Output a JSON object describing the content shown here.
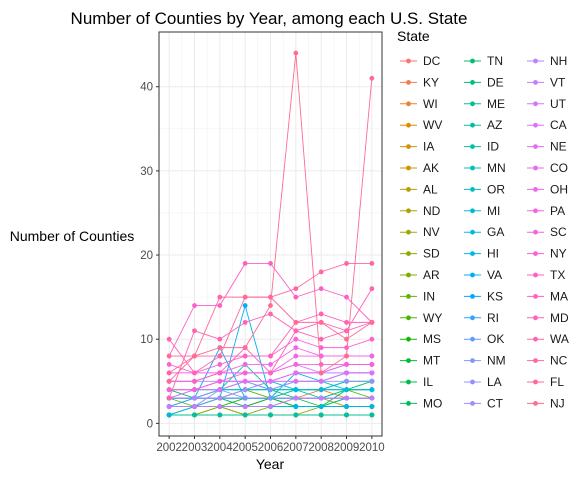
{
  "chart_data": {
    "type": "line",
    "title": "Number of Counties by Year, among each U.S. State",
    "xlabel": "Year",
    "ylabel": "Number of Counties",
    "x": [
      2002,
      2003,
      2004,
      2005,
      2006,
      2007,
      2008,
      2009,
      2010
    ],
    "x_tick_labels": [
      "2002",
      "2003",
      "2004",
      "2005",
      "2006",
      "2007",
      "2008",
      "2009",
      "2010"
    ],
    "xlim": [
      2001.6,
      2010.4
    ],
    "ylim": [
      -1.5,
      46.5
    ],
    "y_ticks": [
      0,
      10,
      20,
      30,
      40
    ],
    "y_tick_labels": [
      "0",
      "10",
      "20",
      "30",
      "40"
    ],
    "grid": true,
    "theme": "light",
    "legend": {
      "title": "State",
      "position": "right",
      "columns": 3,
      "entries": [
        "DC",
        "KY",
        "WI",
        "WV",
        "IA",
        "AK",
        "AL",
        "ND",
        "NV",
        "SD",
        "AR",
        "IN",
        "WY",
        "MS",
        "MT",
        "IL",
        "MO",
        "TN",
        "DE",
        "ME",
        "AZ",
        "ID",
        "MN",
        "OR",
        "MI",
        "GA",
        "HI",
        "VA",
        "KS",
        "RI",
        "OK",
        "NM",
        "LA",
        "CT",
        "NH",
        "VT",
        "UT",
        "CA",
        "NE",
        "CO",
        "OH",
        "PA",
        "SC",
        "NY",
        "TX",
        "MA",
        "MD",
        "WA",
        "NC",
        "FL",
        "NJ"
      ]
    },
    "colors": [
      "#F8766D",
      "#F27D52",
      "#EA8331",
      "#E08B00",
      "#D59000",
      "#C99800",
      "#BB9D00",
      "#AFA200",
      "#9FA700",
      "#8EAB00",
      "#7CAE00",
      "#66B200",
      "#49B500",
      "#11B800",
      "#00BA38",
      "#00BB4E",
      "#00BC5D",
      "#00BE6C",
      "#00BF7D",
      "#00C08B",
      "#00C19A",
      "#00C0A9",
      "#00C0B8",
      "#00BFC4",
      "#00BDD0",
      "#00BAE0",
      "#00B6EB",
      "#00B0F6",
      "#00A8FF",
      "#35A2FF",
      "#619CFF",
      "#7F96FF",
      "#9590FF",
      "#A58AFF",
      "#B385FF",
      "#C77CFF",
      "#D077FA",
      "#DB72FB",
      "#E36EF6",
      "#EA6AF1",
      "#F066EA",
      "#F564E3",
      "#F862D9",
      "#FC61D5",
      "#FD61C8",
      "#FF61C3",
      "#FF62B6",
      "#FF64B0",
      "#FF67A4",
      "#FF6A98",
      "#FF6C91"
    ],
    "series": [
      {
        "name": "DC",
        "values": [
          1,
          1,
          1,
          1,
          1,
          1,
          1,
          1,
          1
        ]
      },
      {
        "name": "KY",
        "values": [
          2,
          2,
          2,
          2,
          3,
          3,
          3,
          3,
          3
        ]
      },
      {
        "name": "WI",
        "values": [
          3,
          3,
          3,
          3,
          3,
          3,
          4,
          3,
          3
        ]
      },
      {
        "name": "WV",
        "values": [
          1,
          1,
          1,
          1,
          1,
          1,
          1,
          1,
          1
        ]
      },
      {
        "name": "IA",
        "values": [
          2,
          2,
          2,
          2,
          2,
          2,
          2,
          2,
          2
        ]
      },
      {
        "name": "AK",
        "values": [
          1,
          1,
          1,
          1,
          1,
          1,
          1,
          1,
          1
        ]
      },
      {
        "name": "AL",
        "values": [
          2,
          2,
          3,
          2,
          2,
          3,
          3,
          2,
          2
        ]
      },
      {
        "name": "ND",
        "values": [
          1,
          1,
          2,
          1,
          1,
          1,
          1,
          1,
          1
        ]
      },
      {
        "name": "NV",
        "values": [
          2,
          2,
          2,
          2,
          2,
          2,
          2,
          2,
          2
        ]
      },
      {
        "name": "SD",
        "values": [
          1,
          1,
          1,
          1,
          1,
          1,
          2,
          2,
          2
        ]
      },
      {
        "name": "AR",
        "values": [
          1,
          1,
          2,
          1,
          2,
          2,
          2,
          2,
          2
        ]
      },
      {
        "name": "IN",
        "values": [
          3,
          2,
          3,
          4,
          3,
          3,
          3,
          4,
          3
        ]
      },
      {
        "name": "WY",
        "values": [
          1,
          1,
          1,
          1,
          1,
          1,
          1,
          1,
          1
        ]
      },
      {
        "name": "MS",
        "values": [
          2,
          2,
          2,
          3,
          3,
          2,
          2,
          3,
          3
        ]
      },
      {
        "name": "MT",
        "values": [
          1,
          2,
          2,
          2,
          3,
          2,
          2,
          2,
          2
        ]
      },
      {
        "name": "IL",
        "values": [
          4,
          3,
          4,
          5,
          4,
          4,
          4,
          5,
          5
        ]
      },
      {
        "name": "MO",
        "values": [
          3,
          3,
          3,
          4,
          4,
          3,
          2,
          4,
          4
        ]
      },
      {
        "name": "TN",
        "values": [
          3,
          3,
          3,
          3,
          3,
          4,
          4,
          4,
          5
        ]
      },
      {
        "name": "DE",
        "values": [
          2,
          2,
          2,
          2,
          2,
          2,
          2,
          2,
          2
        ]
      },
      {
        "name": "ME",
        "values": [
          2,
          2,
          3,
          2,
          2,
          2,
          2,
          3,
          3
        ]
      },
      {
        "name": "AZ",
        "values": [
          3,
          3,
          4,
          7,
          4,
          4,
          4,
          4,
          4
        ]
      },
      {
        "name": "ID",
        "values": [
          1,
          1,
          1,
          1,
          1,
          1,
          1,
          1,
          1
        ]
      },
      {
        "name": "MN",
        "values": [
          3,
          3,
          3,
          3,
          3,
          4,
          3,
          4,
          4
        ]
      },
      {
        "name": "OR",
        "values": [
          2,
          3,
          4,
          4,
          4,
          5,
          5,
          4,
          4
        ]
      },
      {
        "name": "MI",
        "values": [
          4,
          4,
          4,
          4,
          4,
          4,
          4,
          5,
          5
        ]
      },
      {
        "name": "GA",
        "values": [
          3,
          4,
          4,
          4,
          5,
          4,
          4,
          4,
          4
        ]
      },
      {
        "name": "HI",
        "values": [
          1,
          2,
          2,
          2,
          2,
          2,
          2,
          2,
          2
        ]
      },
      {
        "name": "VA",
        "values": [
          3,
          3,
          3,
          14,
          3,
          6,
          5,
          6,
          6
        ]
      },
      {
        "name": "KS",
        "values": [
          3,
          3,
          9,
          3,
          3,
          3,
          3,
          3,
          3
        ]
      },
      {
        "name": "RI",
        "values": [
          2,
          3,
          3,
          3,
          3,
          3,
          3,
          3,
          3
        ]
      },
      {
        "name": "OK",
        "values": [
          2,
          2,
          3,
          3,
          3,
          3,
          3,
          3,
          3
        ]
      },
      {
        "name": "NM",
        "values": [
          2,
          2,
          4,
          3,
          3,
          3,
          3,
          3,
          3
        ]
      },
      {
        "name": "LA",
        "values": [
          3,
          3,
          4,
          5,
          4,
          5,
          5,
          5,
          5
        ]
      },
      {
        "name": "CT",
        "values": [
          5,
          5,
          5,
          5,
          5,
          5,
          5,
          6,
          6
        ]
      },
      {
        "name": "NH",
        "values": [
          3,
          3,
          3,
          4,
          5,
          6,
          6,
          6,
          6
        ]
      },
      {
        "name": "VT",
        "values": [
          2,
          2,
          2,
          2,
          2,
          3,
          3,
          3,
          3
        ]
      },
      {
        "name": "UT",
        "values": [
          4,
          4,
          5,
          5,
          5,
          6,
          6,
          7,
          7
        ]
      },
      {
        "name": "CA",
        "values": [
          5,
          5,
          6,
          6,
          6,
          7,
          6,
          7,
          7
        ]
      },
      {
        "name": "NE",
        "values": [
          3,
          4,
          4,
          5,
          5,
          5,
          5,
          6,
          6
        ]
      },
      {
        "name": "CO",
        "values": [
          4,
          4,
          5,
          5,
          5,
          6,
          6,
          7,
          7
        ]
      },
      {
        "name": "OH",
        "values": [
          5,
          5,
          6,
          6,
          6,
          8,
          8,
          8,
          8
        ]
      },
      {
        "name": "PA",
        "values": [
          6,
          6,
          6,
          7,
          7,
          9,
          8,
          8,
          8
        ]
      },
      {
        "name": "SC",
        "values": [
          4,
          4,
          5,
          6,
          6,
          7,
          7,
          7,
          7
        ]
      },
      {
        "name": "NY",
        "values": [
          7,
          6,
          7,
          8,
          8,
          10,
          9,
          9,
          10
        ]
      },
      {
        "name": "TX",
        "values": [
          8,
          14,
          14,
          19,
          19,
          15,
          16,
          15,
          12
        ]
      },
      {
        "name": "MA",
        "values": [
          5,
          5,
          6,
          9,
          6,
          11,
          12,
          11,
          12
        ]
      },
      {
        "name": "MD",
        "values": [
          10,
          6,
          8,
          8,
          8,
          12,
          13,
          12,
          12
        ]
      },
      {
        "name": "WA",
        "values": [
          3,
          11,
          10,
          12,
          13,
          11,
          10,
          11,
          16
        ]
      },
      {
        "name": "NC",
        "values": [
          6,
          8,
          8,
          15,
          15,
          16,
          18,
          19,
          19
        ]
      },
      {
        "name": "FL",
        "values": [
          8,
          8,
          15,
          15,
          15,
          12,
          12,
          10,
          12
        ]
      },
      {
        "name": "NJ",
        "values": [
          5,
          8,
          9,
          9,
          14,
          44,
          6,
          8,
          41
        ]
      }
    ]
  }
}
